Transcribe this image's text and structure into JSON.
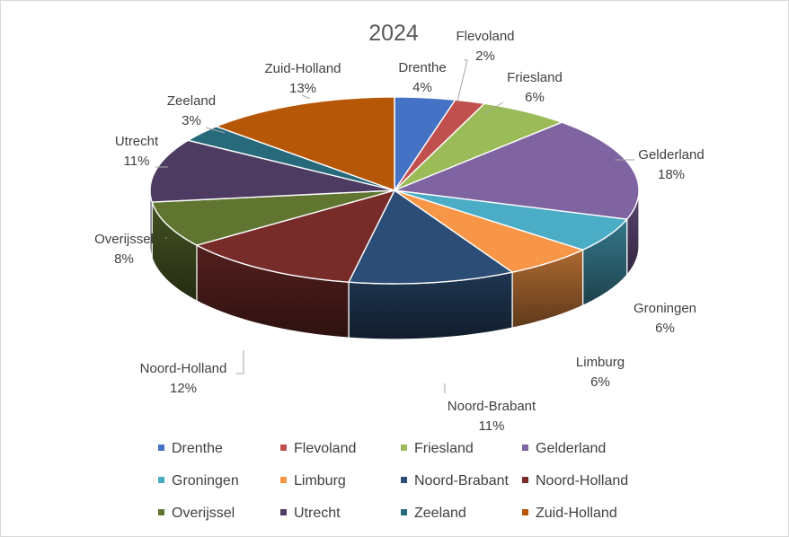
{
  "chart_data": {
    "type": "pie",
    "title": "2024",
    "categories": [
      "Drenthe",
      "Flevoland",
      "Friesland",
      "Gelderland",
      "Groningen",
      "Limburg",
      "Noord-Brabant",
      "Noord-Holland",
      "Overijssel",
      "Utrecht",
      "Zeeland",
      "Zuid-Holland"
    ],
    "values": [
      4,
      2,
      6,
      18,
      6,
      6,
      11,
      12,
      8,
      11,
      3,
      13
    ],
    "percent_labels": [
      "4%",
      "2%",
      "6%",
      "18%",
      "6%",
      "6%",
      "11%",
      "12%",
      "8%",
      "11%",
      "3%",
      "13%"
    ],
    "colors": [
      "#4472c4",
      "#c0504d",
      "#9bbb59",
      "#8064a2",
      "#4bacc6",
      "#f79646",
      "#2c4d75",
      "#772c2a",
      "#5f7530",
      "#4d3b62",
      "#276a7c",
      "#b65708"
    ],
    "legend_position": "bottom",
    "style": "3d"
  }
}
